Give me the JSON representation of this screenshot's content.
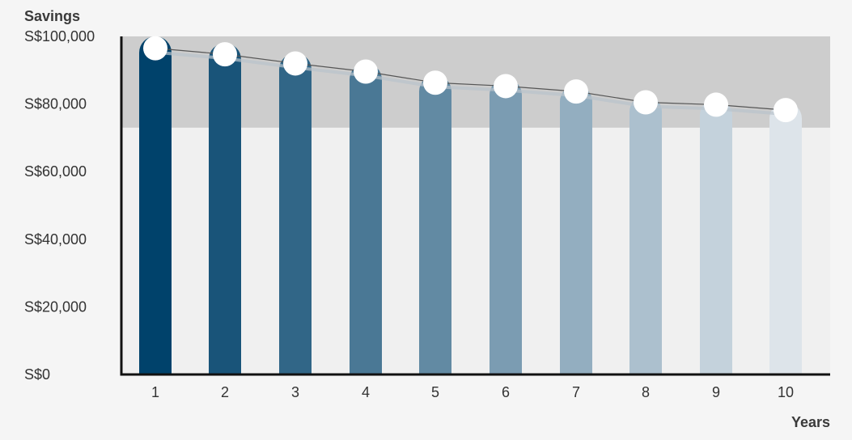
{
  "chart_data": {
    "type": "bar",
    "title": "",
    "ylabel": "Savings",
    "xlabel": "Years",
    "categories": [
      "1",
      "2",
      "3",
      "4",
      "5",
      "6",
      "7",
      "8",
      "9",
      "10"
    ],
    "values": [
      100000,
      98000,
      95000,
      92000,
      88500,
      87500,
      85500,
      82500,
      81500,
      80500
    ],
    "line_values": [
      96500,
      94700,
      92000,
      89600,
      86300,
      85300,
      83700,
      80500,
      79800,
      78200
    ],
    "ylim": [
      0,
      100000
    ],
    "yticks": [
      {
        "value": 0,
        "label": "S$0"
      },
      {
        "value": 20000,
        "label": "S$20,000"
      },
      {
        "value": 40000,
        "label": "S$40,000"
      },
      {
        "value": 60000,
        "label": "S$60,000"
      },
      {
        "value": 80000,
        "label": "S$80,000"
      },
      {
        "value": 100000,
        "label": "S$100,000"
      }
    ],
    "highlight_band": [
      73000,
      100000
    ],
    "grid": false,
    "colors": {
      "bar_start": "#00426b",
      "bar_end": "#dde4ea",
      "band": "#cdcdcd",
      "plot_bg": "#f0f0f0",
      "line": "#555555",
      "marker": "#ffffff"
    }
  }
}
